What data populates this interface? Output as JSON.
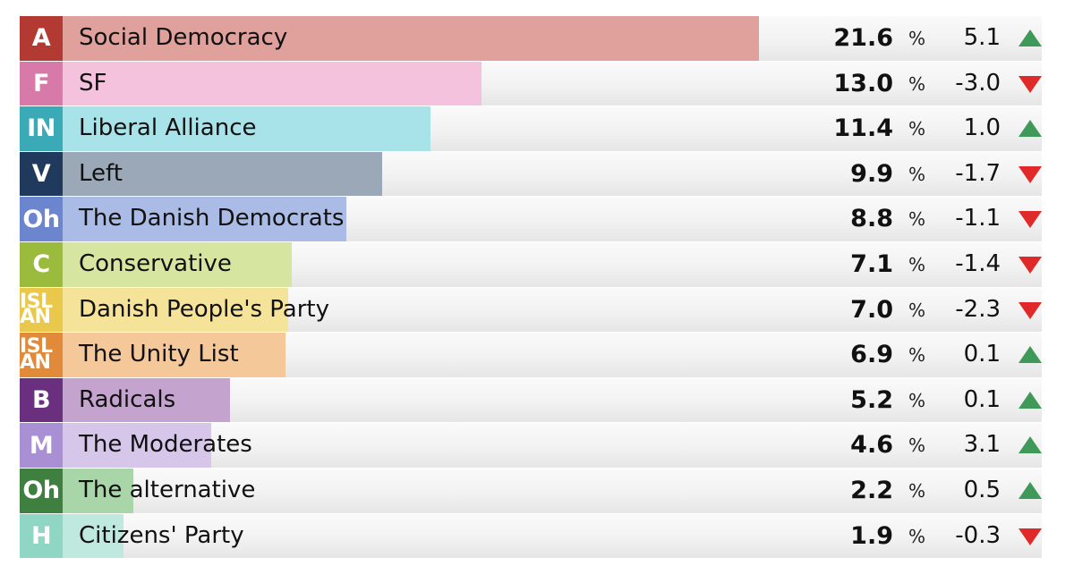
{
  "chart_data": {
    "type": "bar",
    "orientation": "horizontal",
    "xlim": [
      0,
      45
    ],
    "unit": "%",
    "rows": [
      {
        "letter": "A",
        "name": "Social Democracy",
        "value": 21.6,
        "pct": "21.6",
        "change": "5.1",
        "direction": "up",
        "color": "#e0a09c",
        "letter_color": "#b23a33"
      },
      {
        "letter": "F",
        "name": "SF",
        "value": 13.0,
        "pct": "13.0",
        "change": "-3.0",
        "direction": "down",
        "color": "#f4c2dc",
        "letter_color": "#d77aa9"
      },
      {
        "letter": "IN",
        "name": "Liberal Alliance",
        "value": 11.4,
        "pct": "11.4",
        "change": "1.0",
        "direction": "up",
        "color": "#a9e3ea",
        "letter_color": "#3aaab7"
      },
      {
        "letter": "V",
        "name": "Left",
        "value": 9.9,
        "pct": "9.9",
        "change": "-1.7",
        "direction": "down",
        "color": "#9aa8b8",
        "letter_color": "#1f3a5c"
      },
      {
        "letter": "Oh",
        "name": "The Danish Democrats",
        "value": 8.8,
        "pct": "8.8",
        "change": "-1.1",
        "direction": "down",
        "color": "#aabce6",
        "letter_color": "#6b86cf"
      },
      {
        "letter": "C",
        "name": "Conservative",
        "value": 7.1,
        "pct": "7.1",
        "change": "-1.4",
        "direction": "down",
        "color": "#d6e6a0",
        "letter_color": "#9bbb3c"
      },
      {
        "letter": "ISLAN",
        "name": "Danish People's Party",
        "value": 7.0,
        "pct": "7.0",
        "change": "-2.3",
        "direction": "down",
        "color": "#f6e39a",
        "letter_color": "#e9c84b"
      },
      {
        "letter": "ISLAN",
        "name": "The Unity List",
        "value": 6.9,
        "pct": "6.9",
        "change": "0.1",
        "direction": "up",
        "color": "#f5c89a",
        "letter_color": "#e08a3a"
      },
      {
        "letter": "B",
        "name": "Radicals",
        "value": 5.2,
        "pct": "5.2",
        "change": "0.1",
        "direction": "up",
        "color": "#c4a3cf",
        "letter_color": "#6b2f7f"
      },
      {
        "letter": "M",
        "name": "The Moderates",
        "value": 4.6,
        "pct": "4.6",
        "change": "3.1",
        "direction": "up",
        "color": "#d5c6ea",
        "letter_color": "#a98fd3"
      },
      {
        "letter": "Oh",
        "name": "The alternative",
        "value": 2.2,
        "pct": "2.2",
        "change": "0.5",
        "direction": "up",
        "color": "#a9d6a9",
        "letter_color": "#3f7f3f"
      },
      {
        "letter": "H",
        "name": "Citizens' Party",
        "value": 1.9,
        "pct": "1.9",
        "change": "-0.3",
        "direction": "down",
        "color": "#bfe9df",
        "letter_color": "#8fd6c4"
      }
    ]
  }
}
